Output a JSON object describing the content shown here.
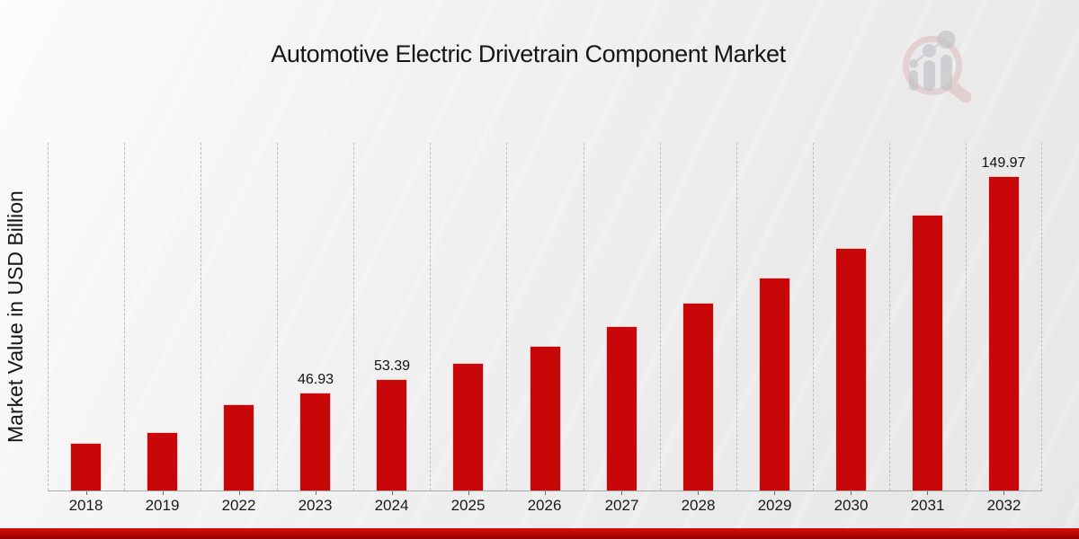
{
  "title": "Automotive Electric Drivetrain Component Market",
  "ylabel": "Market Value in USD Billion",
  "colors": {
    "bar": "#c80808",
    "grid": "#bdbdbd",
    "axis": "#a9a9a9",
    "banner_top": "#d31212",
    "banner_bottom": "#950101"
  },
  "logo": {
    "icon": "magnifier-growth-chart-logo"
  },
  "chart_data": {
    "type": "bar",
    "title": "Automotive Electric Drivetrain Component Market",
    "xlabel": "",
    "ylabel": "Market Value in USD Billion",
    "categories": [
      "2018",
      "2019",
      "2022",
      "2023",
      "2024",
      "2025",
      "2026",
      "2027",
      "2028",
      "2029",
      "2030",
      "2031",
      "2032"
    ],
    "values": [
      22.8,
      28.0,
      41.2,
      46.93,
      53.39,
      60.75,
      69.1,
      78.6,
      89.5,
      101.8,
      115.8,
      131.8,
      149.97
    ],
    "data_labels": [
      "",
      "",
      "",
      "46.93",
      "53.39",
      "",
      "",
      "",
      "",
      "",
      "",
      "",
      "149.97"
    ],
    "ylim": [
      0,
      166
    ],
    "grid": true,
    "grid_style": "vertical-dashed",
    "legend": "none",
    "bar_color": "#c80808"
  }
}
